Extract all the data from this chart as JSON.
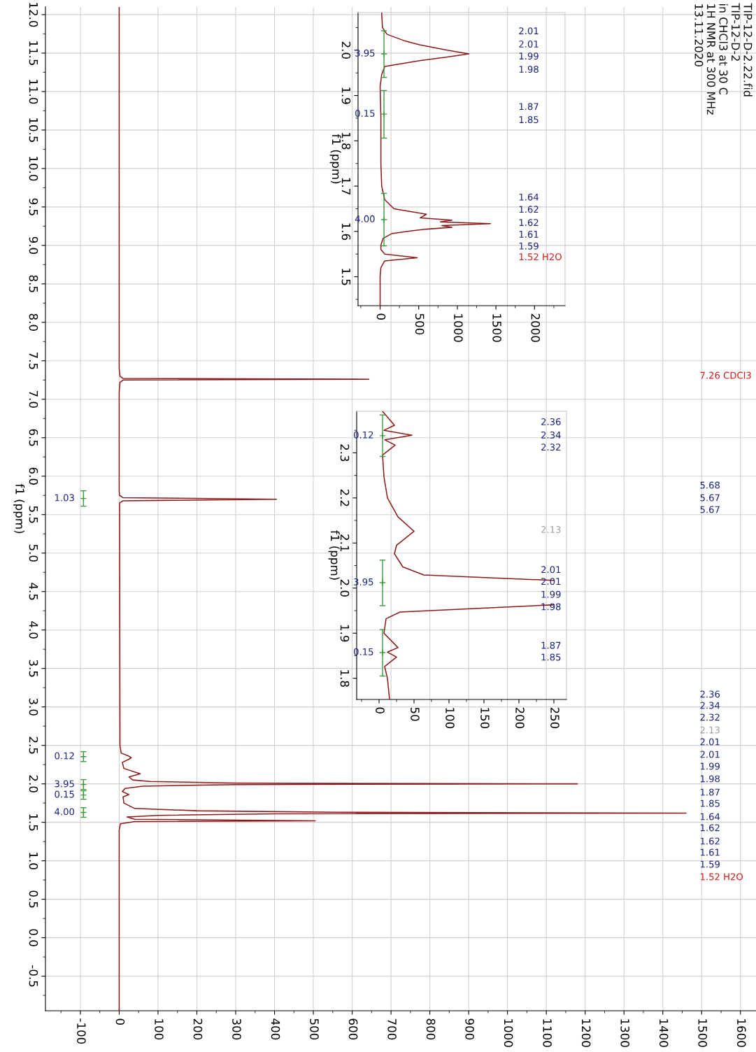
{
  "chart_data": [
    {
      "type": "line",
      "orientation": "horizontal",
      "ylabel": "f1 (ppm)",
      "grid": true,
      "xlim": [
        -190,
        1640
      ],
      "ylim": [
        -0.95,
        12.1
      ],
      "xticks": [
        {
          "value": -150,
          "label": null
        },
        -100,
        {
          "value": -50,
          "label": null
        },
        0,
        {
          "value": 50,
          "label": null
        },
        100,
        {
          "value": 150,
          "label": null
        },
        200,
        {
          "value": 250,
          "label": null
        },
        300,
        {
          "value": 350,
          "label": null
        },
        400,
        {
          "value": 450,
          "label": null
        },
        500,
        {
          "value": 550,
          "label": null
        },
        600,
        {
          "value": 650,
          "label": null
        },
        700,
        {
          "value": 750,
          "label": null
        },
        800,
        {
          "value": 850,
          "label": null
        },
        900,
        {
          "value": 950,
          "label": null
        },
        1000,
        {
          "value": 1050,
          "label": null
        },
        1100,
        {
          "value": 1150,
          "label": null
        },
        1200,
        {
          "value": 1250,
          "label": null
        },
        1300,
        {
          "value": 1350,
          "label": null
        },
        1400,
        {
          "value": 1450,
          "label": null
        },
        1500,
        {
          "value": 1550,
          "label": null
        },
        1600
      ],
      "yticks": [
        {
          "value": -0.75,
          "label": null
        },
        {
          "value": -0.5,
          "label": "-0.5"
        },
        {
          "value": -0.25,
          "label": null
        },
        {
          "value": 0,
          "label": "0.0"
        },
        {
          "value": 0.25,
          "label": null
        },
        {
          "value": 0.5,
          "label": "0.5"
        },
        {
          "value": 0.75,
          "label": null
        },
        {
          "value": 1,
          "label": "1.0"
        },
        {
          "value": 1.25,
          "label": null
        },
        {
          "value": 1.5,
          "label": "1.5"
        },
        {
          "value": 1.75,
          "label": null
        },
        {
          "value": 2,
          "label": "2.0"
        },
        {
          "value": 2.25,
          "label": null
        },
        {
          "value": 2.5,
          "label": "2.5"
        },
        {
          "value": 2.75,
          "label": null
        },
        {
          "value": 3,
          "label": "3.0"
        },
        {
          "value": 3.25,
          "label": null
        },
        {
          "value": 3.5,
          "label": "3.5"
        },
        {
          "value": 3.75,
          "label": null
        },
        {
          "value": 4,
          "label": "4.0"
        },
        {
          "value": 4.25,
          "label": null
        },
        {
          "value": 4.5,
          "label": "4.5"
        },
        {
          "value": 4.75,
          "label": null
        },
        {
          "value": 5,
          "label": "5.0"
        },
        {
          "value": 5.25,
          "label": null
        },
        {
          "value": 5.5,
          "label": "5.5"
        },
        {
          "value": 5.75,
          "label": null
        },
        {
          "value": 6,
          "label": "6.0"
        },
        {
          "value": 6.25,
          "label": null
        },
        {
          "value": 6.5,
          "label": "6.5"
        },
        {
          "value": 6.75,
          "label": null
        },
        {
          "value": 7,
          "label": "7.0"
        },
        {
          "value": 7.25,
          "label": null
        },
        {
          "value": 7.5,
          "label": "7.5"
        },
        {
          "value": 7.75,
          "label": null
        },
        {
          "value": 8,
          "label": "8.0"
        },
        {
          "value": 8.25,
          "label": null
        },
        {
          "value": 8.5,
          "label": "8.5"
        },
        {
          "value": 8.75,
          "label": null
        },
        {
          "value": 9,
          "label": "9.0"
        },
        {
          "value": 9.25,
          "label": null
        },
        {
          "value": 9.5,
          "label": "9.5"
        },
        {
          "value": 9.75,
          "label": null
        },
        {
          "value": 10,
          "label": "10.0"
        },
        {
          "value": 10.25,
          "label": null
        },
        {
          "value": 10.5,
          "label": "10.5"
        },
        {
          "value": 10.75,
          "label": null
        },
        {
          "value": 11,
          "label": "11.0"
        },
        {
          "value": 11.25,
          "label": null
        },
        {
          "value": 11.5,
          "label": "11.5"
        },
        {
          "value": 11.75,
          "label": null
        },
        {
          "value": 12,
          "label": "12.0"
        }
      ],
      "series": [
        {
          "color": "#8b1a1a",
          "x": [
            12.1,
            7.4,
            7.3,
            7.27,
            7.26,
            7.25,
            7.22,
            7.1,
            5.8,
            5.75,
            5.72,
            5.7,
            5.68,
            5.65,
            2.5,
            2.4,
            2.36,
            2.34,
            2.32,
            2.28,
            2.2,
            2.13,
            2.09,
            2.05,
            2.03,
            2.01,
            2.0,
            1.99,
            1.97,
            1.94,
            1.9,
            1.86,
            1.83,
            1.75,
            1.68,
            1.65,
            1.63,
            1.62,
            1.61,
            1.59,
            1.57,
            1.54,
            1.52,
            1.51,
            1.48,
            1.4,
            -0.95
          ],
          "values": [
            0,
            0,
            2,
            10,
            643,
            10,
            2,
            0,
            0,
            1,
            10,
            405,
            10,
            1,
            2,
            5,
            25,
            31,
            25,
            8,
            12,
            54,
            25,
            35,
            80,
            300,
            1180,
            300,
            60,
            15,
            8,
            25,
            10,
            12,
            40,
            200,
            560,
            1460,
            400,
            100,
            20,
            40,
            505,
            40,
            3,
            0,
            0
          ]
        },
        {
          "type": "scatter",
          "marker": "cross",
          "color": "#3c9a3c",
          "x": [
            5.71,
            2.354,
            1.991,
            1.855,
            1.628
          ],
          "values": [
            -92,
            -92,
            -92,
            -92,
            -92
          ],
          "xerrors": [
            [
              5.61,
              5.81
            ],
            [
              2.29,
              2.418
            ],
            [
              1.927,
              2.055
            ],
            [
              1.8,
              1.91
            ],
            [
              1.565,
              1.69
            ]
          ]
        }
      ],
      "annotations": [
        "TIP-12-D-2.22.fid",
        "TIP-12-D-2",
        "in CHCl3 at 30 C",
        "1H NMR at 300 MHz",
        "13.11.2020",
        "1.03",
        "0.12",
        "3.95",
        "0.15",
        "4.00",
        "7.26 CDCl3",
        "5.68",
        "5.67",
        "5.67",
        "2.36",
        "2.34",
        "2.32",
        "2.13",
        "2.01",
        "2.01",
        "1.99",
        "1.98",
        "1.87",
        "1.85",
        "1.64",
        "1.62",
        "1.62",
        "1.61",
        "1.59",
        "1.52 H2O"
      ]
    },
    {
      "type": "line",
      "orientation": "horizontal",
      "ylabel": "f1 (ppm)",
      "xlim": [
        -286,
        2395
      ],
      "ylim": [
        1.436,
        2.083
      ],
      "xticks": [
        {
          "value": -250,
          "label": null
        },
        0,
        {
          "value": 250,
          "label": null
        },
        500,
        {
          "value": 750,
          "label": null
        },
        1000,
        {
          "value": 1250,
          "label": null
        },
        1500,
        {
          "value": 1750,
          "label": null
        },
        2000,
        {
          "value": 2250,
          "label": null
        }
      ],
      "yticks": [
        {
          "value": 1.45,
          "label": null
        },
        1.5,
        {
          "value": 1.55,
          "label": null
        },
        1.6,
        {
          "value": 1.65,
          "label": null
        },
        1.7,
        {
          "value": 1.75,
          "label": null
        },
        1.8,
        {
          "value": 1.85,
          "label": null
        },
        1.9,
        {
          "value": 1.95,
          "label": null
        },
        {
          "value": 2,
          "label": "2.0"
        },
        {
          "value": 2.05,
          "label": null
        }
      ],
      "series": [
        {
          "color": "#8b1a1a",
          "x": [
            2.083,
            2.05,
            2.035,
            2.02,
            2.012,
            2.0,
            1.992,
            1.985,
            1.977,
            1.964,
            1.946,
            1.92,
            1.85,
            1.75,
            1.7,
            1.67,
            1.65,
            1.638,
            1.63,
            1.625,
            1.621,
            1.617,
            1.613,
            1.609,
            1.605,
            1.601,
            1.595,
            1.585,
            1.57,
            1.56,
            1.55,
            1.542,
            1.535,
            1.52,
            1.5,
            1.436
          ],
          "values": [
            20,
            30,
            90,
            330,
            510,
            870,
            1150,
            870,
            510,
            60,
            20,
            0,
            10,
            10,
            20,
            60,
            180,
            600,
            520,
            930,
            780,
            1430,
            800,
            930,
            600,
            390,
            150,
            40,
            10,
            10,
            60,
            480,
            60,
            10,
            0,
            0
          ]
        },
        {
          "type": "scatter",
          "marker": "cross",
          "color": "#3c9a3c",
          "x": [
            1.992,
            1.859,
            1.626
          ],
          "values": [
            50,
            50,
            50
          ],
          "xerrors": [
            [
              1.94,
              2.043
            ],
            [
              1.806,
              1.911
            ],
            [
              1.568,
              1.684
            ]
          ]
        }
      ],
      "annotations": [
        "3.95",
        "0.15",
        "4.00",
        "2.01",
        "2.01",
        "1.99",
        "1.98",
        "1.87",
        "1.85",
        "1.64",
        "1.62",
        "1.62",
        "1.61",
        "1.59",
        "1.52 H2O"
      ]
    },
    {
      "type": "line",
      "orientation": "horizontal",
      "ylabel": "f1 (ppm)",
      "xlim": [
        -32,
        268
      ],
      "ylim": [
        1.753,
        2.392
      ],
      "xticks": [
        {
          "value": -25,
          "label": null
        },
        0,
        {
          "value": 25,
          "label": null
        },
        50,
        {
          "value": 75,
          "label": null
        },
        100,
        {
          "value": 125,
          "label": null
        },
        150,
        {
          "value": 175,
          "label": null
        },
        200,
        {
          "value": 225,
          "label": null
        },
        250
      ],
      "yticks": [
        1.8,
        {
          "value": 1.85,
          "label": null
        },
        1.9,
        {
          "value": 1.95,
          "label": null
        },
        {
          "value": 2,
          "label": "2.0"
        },
        {
          "value": 2.05,
          "label": null
        },
        2.1,
        {
          "value": 2.15,
          "label": null
        },
        2.2,
        {
          "value": 2.25,
          "label": null
        },
        2.3,
        {
          "value": 2.35,
          "label": null
        }
      ],
      "series": [
        {
          "color": "#8b1a1a",
          "x": [
            2.392,
            2.361,
            2.35,
            2.339,
            2.329,
            2.317,
            2.295,
            2.247,
            2.2,
            2.158,
            2.126,
            2.095,
            2.076,
            2.047,
            2.029,
            2.017,
            2.0,
            1.963,
            1.947,
            1.932,
            1.9,
            1.868,
            1.858,
            1.847,
            1.826,
            1.8,
            1.753
          ],
          "values": [
            5,
            22,
            7,
            47,
            8,
            23,
            5,
            7,
            12,
            27,
            50,
            25,
            22,
            34,
            64,
            250,
            null,
            250,
            30,
            10,
            7,
            27,
            12,
            25,
            8,
            12,
            15
          ]
        },
        {
          "type": "scatter",
          "marker": "cross",
          "color": "#3c9a3c",
          "x": [
            2.338,
            2.012,
            1.857
          ],
          "values": [
            5,
            5,
            5
          ],
          "xerrors": [
            [
              2.292,
              2.384
            ],
            [
              1.961,
              2.062
            ],
            [
              1.805,
              1.908
            ]
          ]
        }
      ],
      "annotations": [
        "0.12",
        "3.95",
        "0.15",
        "2.36",
        "2.34",
        "2.32",
        "2.13",
        "2.01",
        "2.01",
        "1.99",
        "1.98",
        "1.87",
        "1.85"
      ]
    }
  ]
}
